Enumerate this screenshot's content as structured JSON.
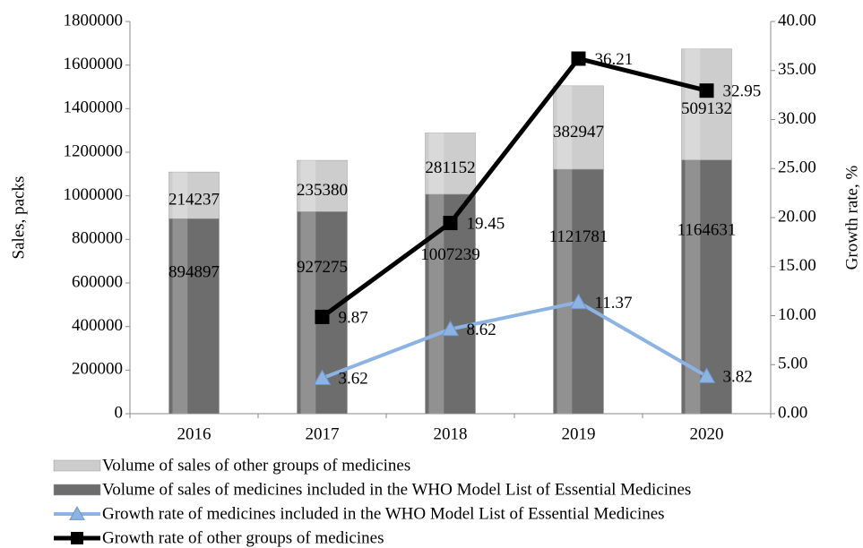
{
  "chart_data": {
    "type": "bar",
    "categories": [
      "2016",
      "2017",
      "2018",
      "2019",
      "2020"
    ],
    "ylabel": "Sales, packs",
    "y2label": "Growth rate, %",
    "ylim": [
      0,
      1800000
    ],
    "yticks": [
      0,
      200000,
      400000,
      600000,
      800000,
      1000000,
      1200000,
      1400000,
      1600000,
      1800000
    ],
    "y2lim": [
      0,
      40
    ],
    "y2ticks": [
      {
        "value": 0,
        "label": "0.00"
      },
      {
        "value": 5,
        "label": "5.00"
      },
      {
        "value": 10,
        "label": "10.00"
      },
      {
        "value": 15,
        "label": "15.00"
      },
      {
        "value": 20,
        "label": "20.00"
      },
      {
        "value": 25,
        "label": "25.00"
      },
      {
        "value": 30,
        "label": "30.00"
      },
      {
        "value": 35,
        "label": "35.00"
      },
      {
        "value": 40,
        "label": "40.00"
      }
    ],
    "stacked": true,
    "series": [
      {
        "name": "Volume of sales of medicines included in the WHO Model List of Essential Medicines",
        "type": "bar",
        "color": "#6d6d6d",
        "values": [
          894897,
          927275,
          1007239,
          1121781,
          1164631
        ]
      },
      {
        "name": "Volume of sales of other groups of medicines",
        "type": "bar",
        "color": "#cdcdcd",
        "values": [
          214237,
          235380,
          281152,
          382947,
          509132
        ]
      },
      {
        "name": "Growth rate of medicines included in the WHO Model List of Essential Medicines",
        "type": "line",
        "axis": "y2",
        "marker": "triangle",
        "color": "#8db3e2",
        "values": [
          null,
          3.62,
          8.62,
          11.37,
          3.82
        ]
      },
      {
        "name": "Growth rate of other groups of medicines",
        "type": "line",
        "axis": "y2",
        "marker": "square",
        "color": "#000000",
        "values": [
          null,
          9.87,
          19.45,
          36.21,
          32.95
        ]
      }
    ],
    "legend_order": [
      1,
      0,
      2,
      3
    ]
  }
}
